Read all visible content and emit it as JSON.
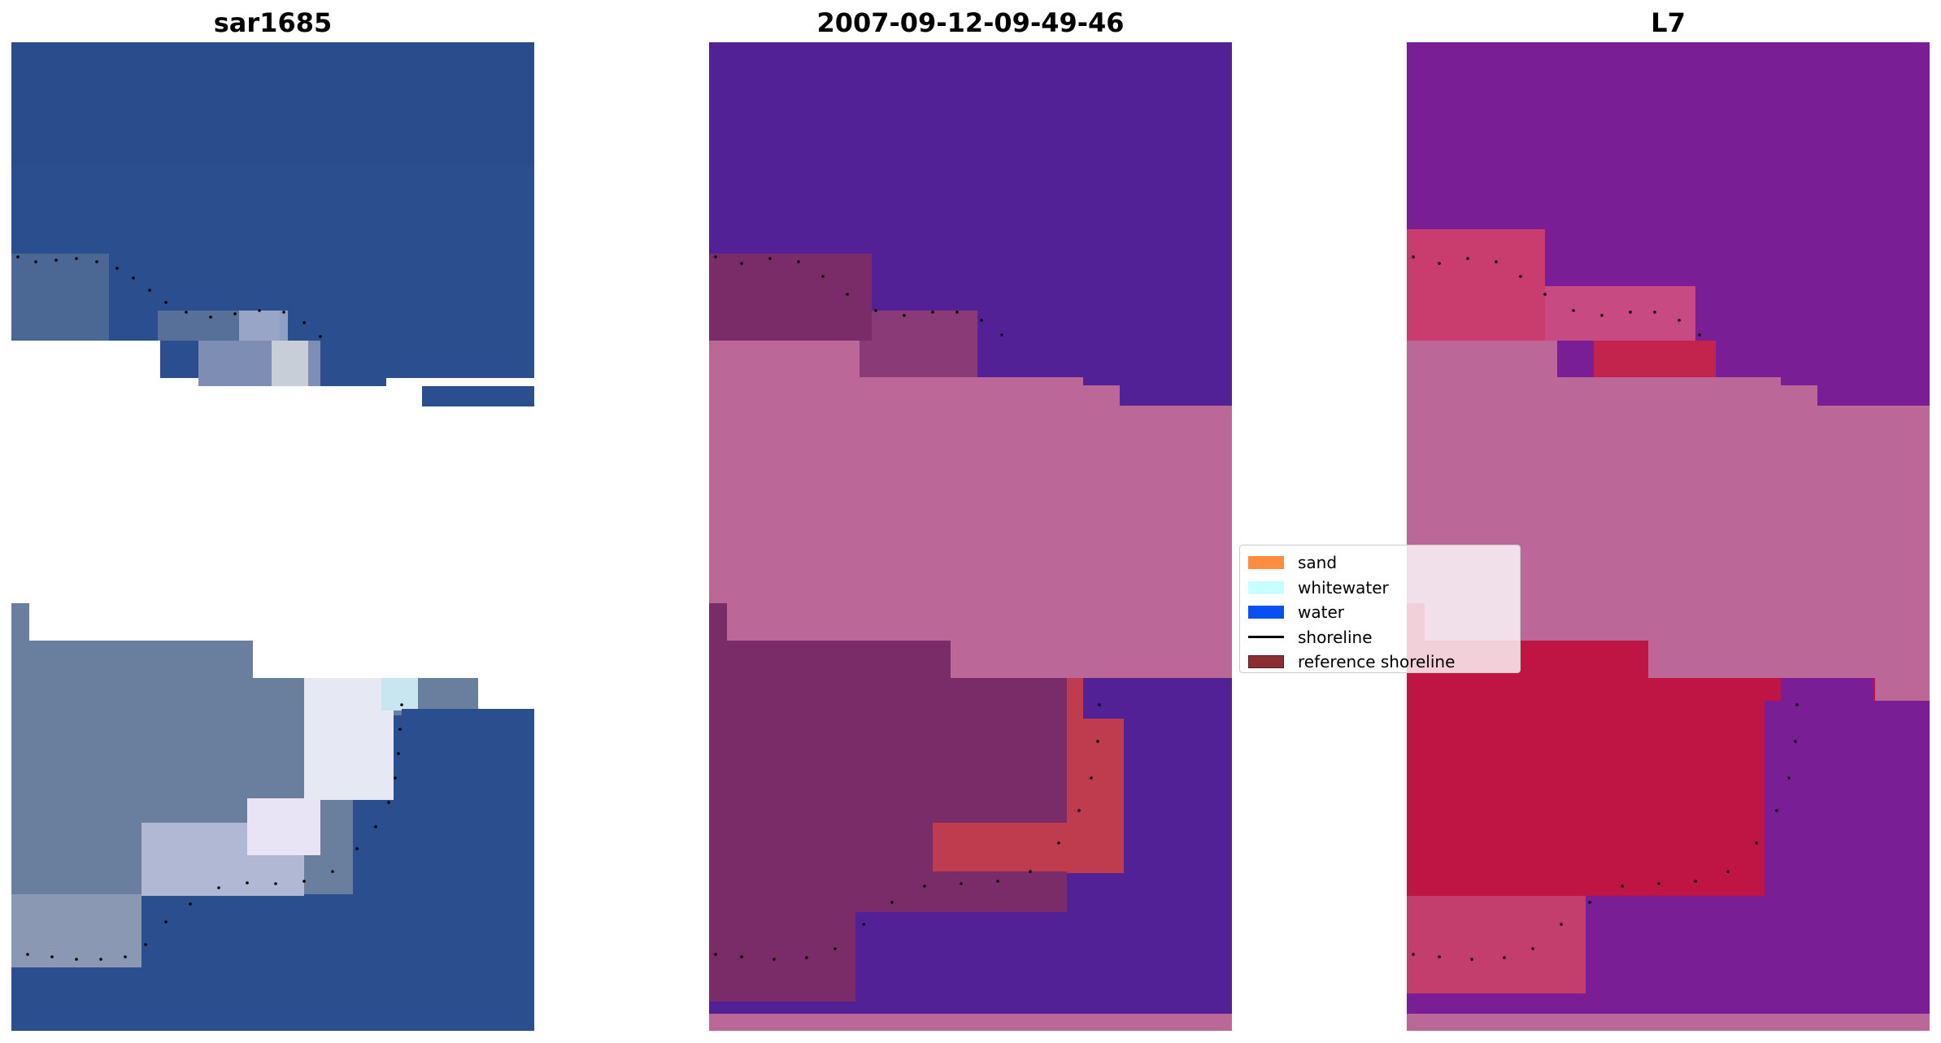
{
  "panels": {
    "image": {
      "title": "sar1685"
    },
    "classified": {
      "title": "2007-09-12-09-49-46"
    },
    "index": {
      "title": "L7"
    }
  },
  "legend": {
    "items": [
      {
        "label": "sand",
        "color": "#ff8c3f",
        "kind": "patch"
      },
      {
        "label": "whitewater",
        "color": "#c8ffff",
        "kind": "patch"
      },
      {
        "label": "water",
        "color": "#0a50f0",
        "kind": "patch"
      },
      {
        "label": "shoreline",
        "color": "#000000",
        "kind": "line"
      },
      {
        "label": "reference shoreline",
        "color": "#8b2f34",
        "kind": "patch"
      }
    ]
  },
  "colors": {
    "no_data_overlay": "#bb6797",
    "water_overlay": "#532196",
    "land_overlay": "#7a2c68",
    "index_water": "#7a1e96",
    "index_land": "#be1545",
    "rgb_water": "#2b4f8e",
    "rgb_land": "#6a7f9e",
    "rgb_whitewater": "#e8e4f6"
  }
}
